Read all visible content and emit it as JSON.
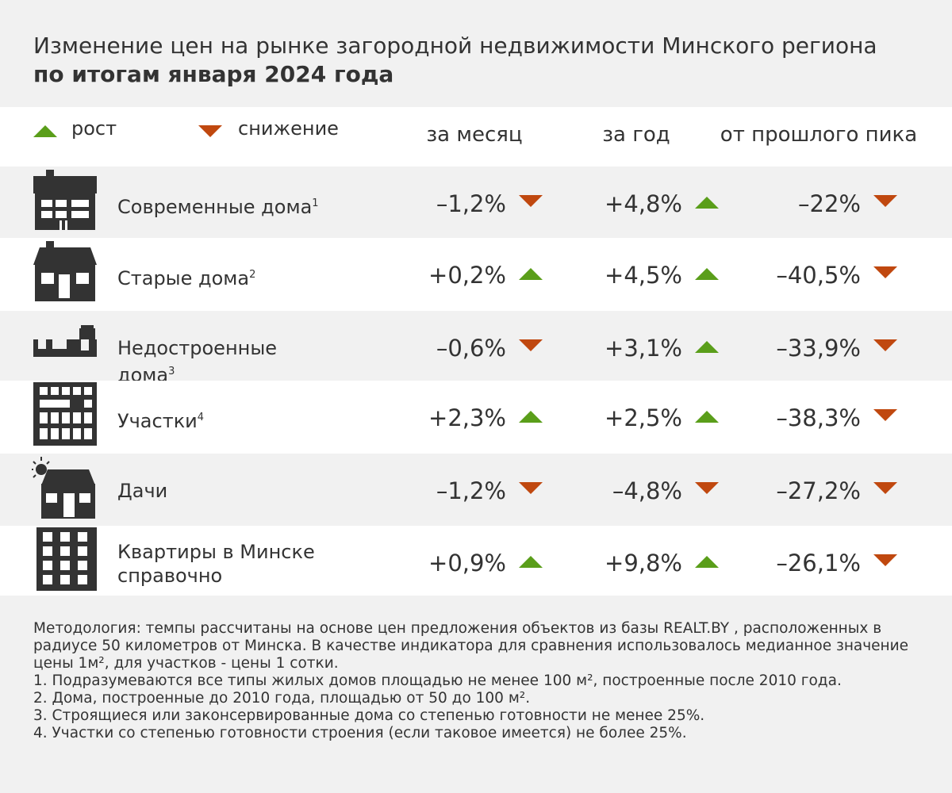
{
  "header": {
    "title": "Изменение цен на рынке загородной недвижимости Минского региона",
    "subtitle": "по итогам января 2024 года"
  },
  "legend": {
    "up": "рост",
    "down": "снижение"
  },
  "columns": [
    "за месяц",
    "за год",
    "от прошлого пика"
  ],
  "rows": [
    {
      "label": "Современные дома",
      "note": "1",
      "values": [
        "–1,2%",
        "+4,8%",
        "–22%"
      ]
    },
    {
      "label": "Старые дома",
      "note": "2",
      "values": [
        "+0,2%",
        "+4,5%",
        "–40,5%"
      ]
    },
    {
      "label": "Недостроенные дома",
      "note": "3",
      "values": [
        "–0,6%",
        "+3,1%",
        "–33,9%"
      ]
    },
    {
      "label": "Участки",
      "note": "4",
      "values": [
        "+2,3%",
        "+2,5%",
        "–38,3%"
      ]
    },
    {
      "label": "Дачи",
      "values": [
        "–1,2%",
        "–4,8%",
        "–27,2%"
      ]
    },
    {
      "label": "Квартиры в Минске справочно",
      "values": [
        "+0,9%",
        "+9,8%",
        "–26,1%"
      ]
    }
  ],
  "footer": {
    "methodology": "Методология: темпы рассчитаны на основе цен предложения объектов из базы REALT.BY , расположенных в радиусе 50 километров от Минска. В качестве индикатора для сравнения использовалось медианное значение цены 1м², для участков  - цены 1 сотки.",
    "notes": [
      "1. Подразумеваются все типы жилых домов площадью не менее 100 м², построенные после 2010 года.",
      "2. Дома, построенные до 2010 года, площадью от 50 до 100 м².",
      "3. Строящиеся или законсервированные дома со степенью готовности не менее 25%.",
      "4. Участки со степенью готовности строения (если таковое имеется) не более 25%."
    ]
  }
}
